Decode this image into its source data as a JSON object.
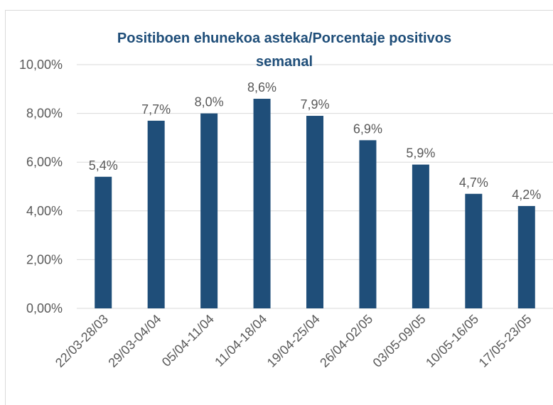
{
  "chart_data": {
    "type": "bar",
    "title": "Positiboen ehunekoa asteka/Porcentaje positivos semanal",
    "categories": [
      "22/03-28/03",
      "29/03-04/04",
      "05/04-11/04",
      "11/04-18/04",
      "19/04-25/04",
      "26/04-02/05",
      "03/05-09/05",
      "10/05-16/05",
      "17/05-23/05"
    ],
    "values": [
      5.4,
      7.7,
      8.0,
      8.6,
      7.9,
      6.9,
      5.9,
      4.7,
      4.2
    ],
    "value_labels": [
      "5,4%",
      "7,7%",
      "8,0%",
      "8,6%",
      "7,9%",
      "6,9%",
      "5,9%",
      "4,7%",
      "4,2%"
    ],
    "color": "#1f4e79",
    "ylim": [
      0,
      10
    ],
    "yticks": [
      {
        "value": 0,
        "label": "0,00%"
      },
      {
        "value": 2,
        "label": "2,00%"
      },
      {
        "value": 4,
        "label": "4,00%"
      },
      {
        "value": 6,
        "label": "6,00%"
      },
      {
        "value": 8,
        "label": "8,00%"
      },
      {
        "value": 10,
        "label": "10,00%"
      }
    ],
    "grid": true
  }
}
